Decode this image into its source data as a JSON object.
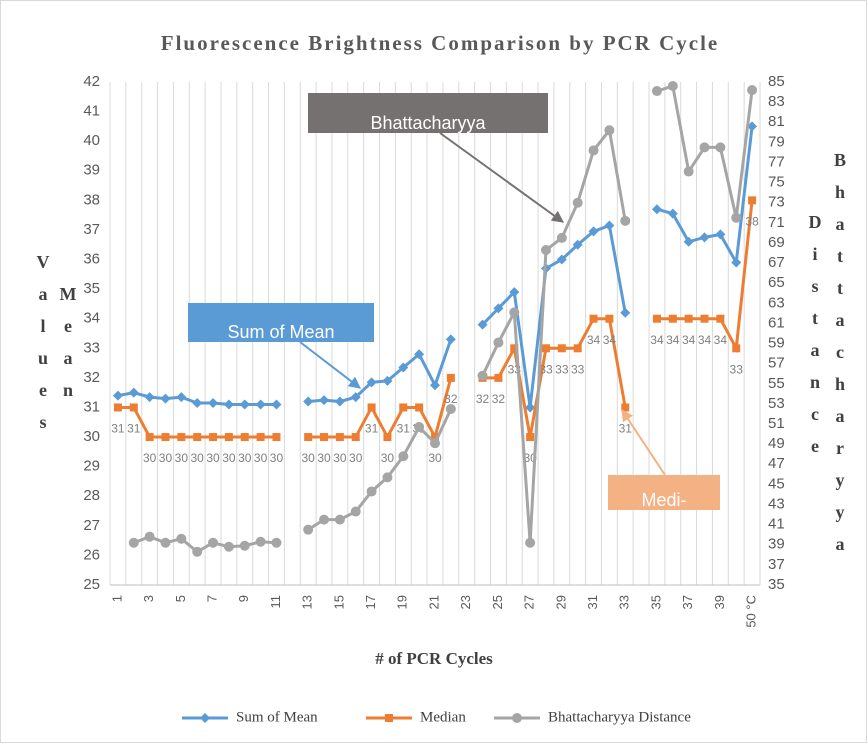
{
  "chart_data": {
    "type": "line",
    "title": "Fluorescence Brightness Comparison by PCR Cycle",
    "xlabel": "# of PCR Cycles",
    "ylabel": "Mean Values",
    "y2label": "Bhattacharyya Distance",
    "categories": [
      "1",
      null,
      "3",
      null,
      "5",
      null,
      "7",
      null,
      "9",
      null,
      "11",
      null,
      "13",
      null,
      "15",
      null,
      "17",
      null,
      "19",
      null,
      "21",
      null,
      "23",
      null,
      "25",
      null,
      "27",
      null,
      "29",
      null,
      "31",
      null,
      "33",
      null,
      "35",
      null,
      "37",
      null,
      "39",
      null,
      "50 °C"
    ],
    "ylim": [
      25,
      42
    ],
    "yticks": [
      25,
      26,
      27,
      28,
      29,
      30,
      31,
      32,
      33,
      34,
      35,
      36,
      37,
      38,
      39,
      40,
      41,
      42
    ],
    "y2lim": [
      35,
      85
    ],
    "y2ticks": [
      35,
      37,
      39,
      41,
      43,
      45,
      47,
      49,
      51,
      53,
      55,
      57,
      59,
      61,
      63,
      65,
      67,
      69,
      71,
      73,
      75,
      77,
      79,
      81,
      83,
      85
    ],
    "grid": true,
    "legend": "bottom",
    "series": [
      {
        "name": "Sum of Mean",
        "color": "#5b9bd5",
        "marker": "diamond",
        "values": [
          31.4,
          31.5,
          31.35,
          31.3,
          31.35,
          31.15,
          31.15,
          31.1,
          31.1,
          31.1,
          31.1,
          null,
          31.2,
          31.25,
          31.2,
          31.35,
          31.85,
          31.9,
          32.35,
          32.8,
          31.75,
          33.3,
          null,
          33.8,
          34.35,
          34.9,
          31.0,
          35.7,
          36.0,
          36.5,
          36.95,
          37.15,
          34.2,
          null,
          37.7,
          37.55,
          36.6,
          36.75,
          36.85,
          35.9,
          40.5
        ]
      },
      {
        "name": "Median",
        "color": "#ed7d31",
        "marker": "square",
        "data_labels": true,
        "values": [
          31,
          31,
          30,
          30,
          30,
          30,
          30,
          30,
          30,
          30,
          30,
          null,
          30,
          30,
          30,
          30,
          31,
          30,
          31,
          31,
          30,
          32,
          null,
          32,
          32,
          33,
          30,
          33,
          33,
          33,
          34,
          34,
          31,
          null,
          34,
          34,
          34,
          34,
          34,
          33,
          38
        ]
      },
      {
        "name": "Bhattacharyya Distance",
        "color": "#a5a5a5",
        "marker": "circle",
        "axis": "y2",
        "values": [
          null,
          39.2,
          39.8,
          39.2,
          39.6,
          38.3,
          39.2,
          38.8,
          38.9,
          39.3,
          39.2,
          null,
          40.5,
          41.5,
          41.5,
          42.3,
          44.3,
          45.7,
          47.8,
          50.7,
          49.1,
          52.5,
          null,
          55.8,
          59.1,
          62.1,
          39.2,
          68.3,
          69.5,
          73.0,
          78.2,
          80.2,
          71.2,
          null,
          84.1,
          84.6,
          76.1,
          78.5,
          78.5,
          71.5,
          84.2
        ]
      }
    ],
    "annotations": [
      {
        "text": "Bhattacharyya",
        "color": "#767171"
      },
      {
        "text": "Sum of Mean",
        "color": "#5b9bd5"
      },
      {
        "text": "Medi-",
        "color": "#f4b183"
      }
    ]
  }
}
